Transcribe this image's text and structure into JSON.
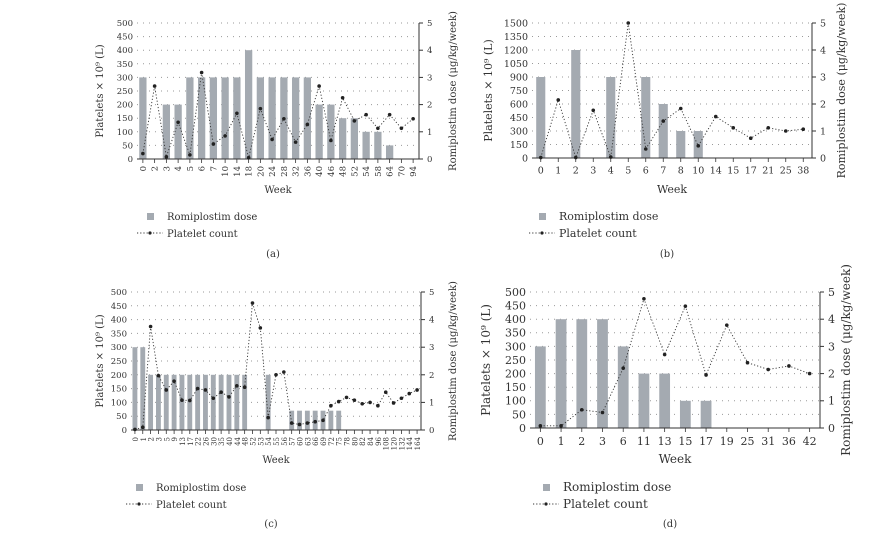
{
  "colors": {
    "bar": "#a4aab1",
    "line": "#333333",
    "grid": "#9a9a9a"
  },
  "chart_data": [
    {
      "type": "bar",
      "panel": "(a)",
      "xlabel": "Week",
      "ylabel": "Platelets × 10⁹ (L)",
      "y2label": "Romiplostim dose (μg/kg/week)",
      "ylim": [
        0,
        500
      ],
      "yticks": [
        0,
        50,
        100,
        150,
        200,
        250,
        300,
        350,
        400,
        450,
        500
      ],
      "y2lim": [
        0,
        5
      ],
      "y2ticks": [
        0,
        1,
        2,
        3,
        4,
        5
      ],
      "grid": true,
      "legend": [
        "Romiplostim dose",
        "Platelet count"
      ],
      "categories": [
        "0",
        "2",
        "3",
        "4",
        "5",
        "6",
        "7",
        "10",
        "14",
        "18",
        "20",
        "24",
        "28",
        "32",
        "36",
        "40",
        "46",
        "48",
        "52",
        "54",
        "58",
        "64",
        "70",
        "94"
      ],
      "series": [
        {
          "name": "Romiplostim dose",
          "type": "bar",
          "axis": "right",
          "values": [
            3,
            0,
            2,
            2,
            3,
            3,
            3,
            3,
            3,
            4,
            3,
            3,
            3,
            3,
            3,
            2,
            2,
            1.5,
            1.5,
            1,
            1,
            0.5,
            0,
            0
          ]
        },
        {
          "name": "Platelet count",
          "type": "line",
          "axis": "left",
          "values": [
            20,
            268,
            8,
            135,
            15,
            318,
            55,
            85,
            168,
            5,
            185,
            72,
            148,
            62,
            127,
            268,
            68,
            225,
            140,
            163,
            113,
            163,
            113,
            148
          ]
        }
      ]
    },
    {
      "type": "bar",
      "panel": "(b)",
      "xlabel": "Week",
      "ylabel": "Platelets × 10⁹ (L)",
      "y2label": "Romiplostim dose (μg/kg/week)",
      "ylim": [
        0,
        1500
      ],
      "yticks": [
        0,
        150,
        300,
        450,
        600,
        750,
        900,
        1050,
        1200,
        1350,
        1500
      ],
      "y2lim": [
        0,
        5
      ],
      "y2ticks": [
        0,
        1,
        2,
        3,
        4,
        5
      ],
      "grid": true,
      "legend": [
        "Romiplostim dose",
        "Platelet count"
      ],
      "categories": [
        "0",
        "1",
        "2",
        "3",
        "4",
        "5",
        "6",
        "7",
        "8",
        "10",
        "14",
        "15",
        "17",
        "21",
        "25",
        "38"
      ],
      "series": [
        {
          "name": "Romiplostim dose",
          "type": "bar",
          "axis": "right",
          "values": [
            3,
            0,
            4,
            0,
            3,
            0,
            3,
            2,
            1,
            1,
            0,
            0,
            0,
            0,
            0,
            0
          ]
        },
        {
          "name": "Platelet count",
          "type": "line",
          "axis": "left",
          "values": [
            5,
            645,
            5,
            530,
            10,
            1500,
            100,
            410,
            550,
            135,
            460,
            335,
            220,
            335,
            300,
            320
          ]
        }
      ]
    },
    {
      "type": "bar",
      "panel": "(c)",
      "xlabel": "Week",
      "ylabel": "Platelets × 10⁹ (L)",
      "y2label": "Romiplostim dose (μg/kg/week)",
      "ylim": [
        0,
        500
      ],
      "yticks": [
        0,
        50,
        100,
        150,
        200,
        250,
        300,
        350,
        400,
        450,
        500
      ],
      "y2lim": [
        0,
        5
      ],
      "y2ticks": [
        0,
        1,
        2,
        3,
        4,
        5
      ],
      "grid": true,
      "legend": [
        "Romiplostim dose",
        "Platelet count"
      ],
      "categories": [
        "0",
        "1",
        "2",
        "3",
        "5",
        "9",
        "13",
        "17",
        "22",
        "26",
        "30",
        "35",
        "40",
        "44",
        "48",
        "52",
        "53",
        "54",
        "55",
        "56",
        "57",
        "60",
        "63",
        "66",
        "69",
        "72",
        "75",
        "78",
        "80",
        "82",
        "84",
        "96",
        "108",
        "120",
        "132",
        "144",
        "164"
      ],
      "series": [
        {
          "name": "Romiplostim dose",
          "type": "bar",
          "axis": "right",
          "values": [
            3,
            3,
            2,
            2,
            2,
            2,
            2,
            2,
            2,
            2,
            2,
            2,
            2,
            2,
            2,
            0,
            0,
            2,
            0,
            0,
            0.7,
            0.7,
            0.7,
            0.7,
            0.7,
            0.7,
            0.7,
            0,
            0,
            0,
            0,
            0,
            0,
            0,
            0,
            0,
            0
          ]
        },
        {
          "name": "Platelet count",
          "type": "line",
          "axis": "left",
          "values": [
            2,
            10,
            375,
            197,
            145,
            177,
            108,
            107,
            150,
            145,
            115,
            137,
            120,
            160,
            155,
            460,
            370,
            45,
            200,
            210,
            25,
            20,
            25,
            30,
            35,
            88,
            103,
            118,
            108,
            95,
            100,
            88,
            137,
            98,
            115,
            132,
            145
          ]
        }
      ]
    },
    {
      "type": "bar",
      "panel": "(d)",
      "xlabel": "Week",
      "ylabel": "Platelets × 10⁹ (L)",
      "y2label": "Romiplostim dose (μg/kg/week)",
      "ylim": [
        0,
        500
      ],
      "yticks": [
        0,
        50,
        100,
        150,
        200,
        250,
        300,
        350,
        400,
        450,
        500
      ],
      "y2lim": [
        0,
        5
      ],
      "y2ticks": [
        0,
        1,
        2,
        3,
        4,
        5
      ],
      "grid": true,
      "legend": [
        "Romiplostim dose",
        "Platelet count"
      ],
      "categories": [
        "0",
        "1",
        "2",
        "3",
        "6",
        "11",
        "13",
        "15",
        "17",
        "19",
        "25",
        "31",
        "36",
        "42"
      ],
      "series": [
        {
          "name": "Romiplostim dose",
          "type": "bar",
          "axis": "right",
          "values": [
            3,
            4,
            4,
            4,
            3,
            2,
            2,
            1,
            1,
            0,
            0,
            0,
            0,
            0
          ]
        },
        {
          "name": "Platelet count",
          "type": "line",
          "axis": "left",
          "values": [
            8,
            8,
            67,
            57,
            220,
            475,
            270,
            448,
            195,
            378,
            240,
            215,
            228,
            200
          ]
        }
      ]
    }
  ]
}
